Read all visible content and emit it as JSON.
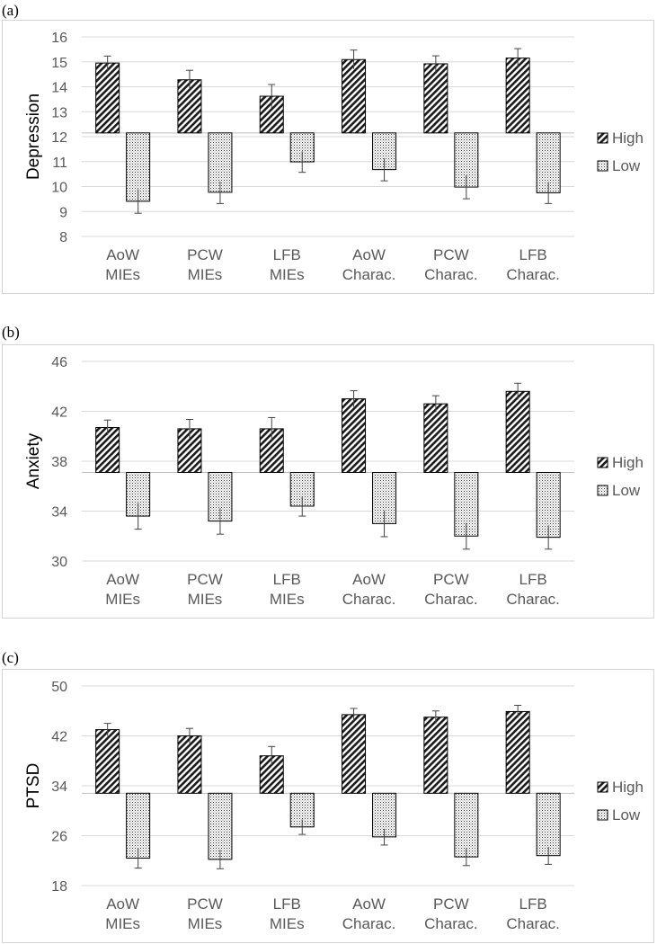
{
  "chart_data": [
    {
      "panel": "(a)",
      "type": "bar",
      "ylabel": "Depression",
      "ylim": [
        8,
        16
      ],
      "yticks": [
        "8",
        "9",
        "10",
        "11",
        "12",
        "13",
        "14",
        "15",
        "16"
      ],
      "baseline": 12.15,
      "categories": [
        [
          "AoW",
          "MIEs"
        ],
        [
          "PCW",
          "MIEs"
        ],
        [
          "LFB",
          "MIEs"
        ],
        [
          "AoW",
          "Charac."
        ],
        [
          "PCW",
          "Charac."
        ],
        [
          "LFB",
          "Charac."
        ]
      ],
      "series": [
        {
          "name": "High",
          "values": [
            14.95,
            14.28,
            13.62,
            15.09,
            14.92,
            15.15
          ],
          "errors": [
            0.28,
            0.38,
            0.47,
            0.38,
            0.32,
            0.38
          ]
        },
        {
          "name": "Low",
          "values": [
            9.41,
            9.77,
            10.99,
            10.68,
            9.98,
            9.75
          ],
          "errors": [
            0.48,
            0.45,
            0.42,
            0.45,
            0.47,
            0.43
          ]
        }
      ],
      "grid": true,
      "legend": "right"
    },
    {
      "panel": "(b)",
      "type": "bar",
      "ylabel": "Anxiety",
      "ylim": [
        30,
        46
      ],
      "yticks": [
        "30",
        "34",
        "38",
        "42",
        "46"
      ],
      "baseline": 37.1,
      "categories": [
        [
          "AoW",
          "MIEs"
        ],
        [
          "PCW",
          "MIEs"
        ],
        [
          "LFB",
          "MIEs"
        ],
        [
          "AoW",
          "Charac."
        ],
        [
          "PCW",
          "Charac."
        ],
        [
          "LFB",
          "Charac."
        ]
      ],
      "series": [
        {
          "name": "High",
          "values": [
            40.7,
            40.6,
            40.6,
            43.0,
            42.6,
            43.6
          ],
          "errors": [
            0.6,
            0.75,
            0.9,
            0.65,
            0.65,
            0.65
          ]
        },
        {
          "name": "Low",
          "values": [
            33.6,
            33.2,
            34.4,
            33.0,
            32.0,
            31.9
          ],
          "errors": [
            1.05,
            1.05,
            0.8,
            1.05,
            1.05,
            0.95
          ]
        }
      ],
      "grid": true,
      "legend": "right"
    },
    {
      "panel": "(c)",
      "type": "bar",
      "ylabel": "PTSD",
      "ylim": [
        18,
        50
      ],
      "yticks": [
        "18",
        "26",
        "34",
        "42",
        "50"
      ],
      "baseline": 32.8,
      "categories": [
        [
          "AoW",
          "MIEs"
        ],
        [
          "PCW",
          "MIEs"
        ],
        [
          "LFB",
          "MIEs"
        ],
        [
          "AoW",
          "Charac."
        ],
        [
          "PCW",
          "Charac."
        ],
        [
          "LFB",
          "Charac."
        ]
      ],
      "series": [
        {
          "name": "High",
          "values": [
            43.0,
            42.0,
            38.8,
            45.4,
            45.0,
            45.9
          ],
          "errors": [
            1.0,
            1.2,
            1.5,
            1.0,
            1.0,
            1.0
          ]
        },
        {
          "name": "Low",
          "values": [
            22.4,
            22.2,
            27.4,
            25.8,
            22.6,
            22.8
          ],
          "errors": [
            1.6,
            1.5,
            1.2,
            1.3,
            1.4,
            1.4
          ]
        }
      ],
      "grid": true,
      "legend": "right"
    }
  ]
}
